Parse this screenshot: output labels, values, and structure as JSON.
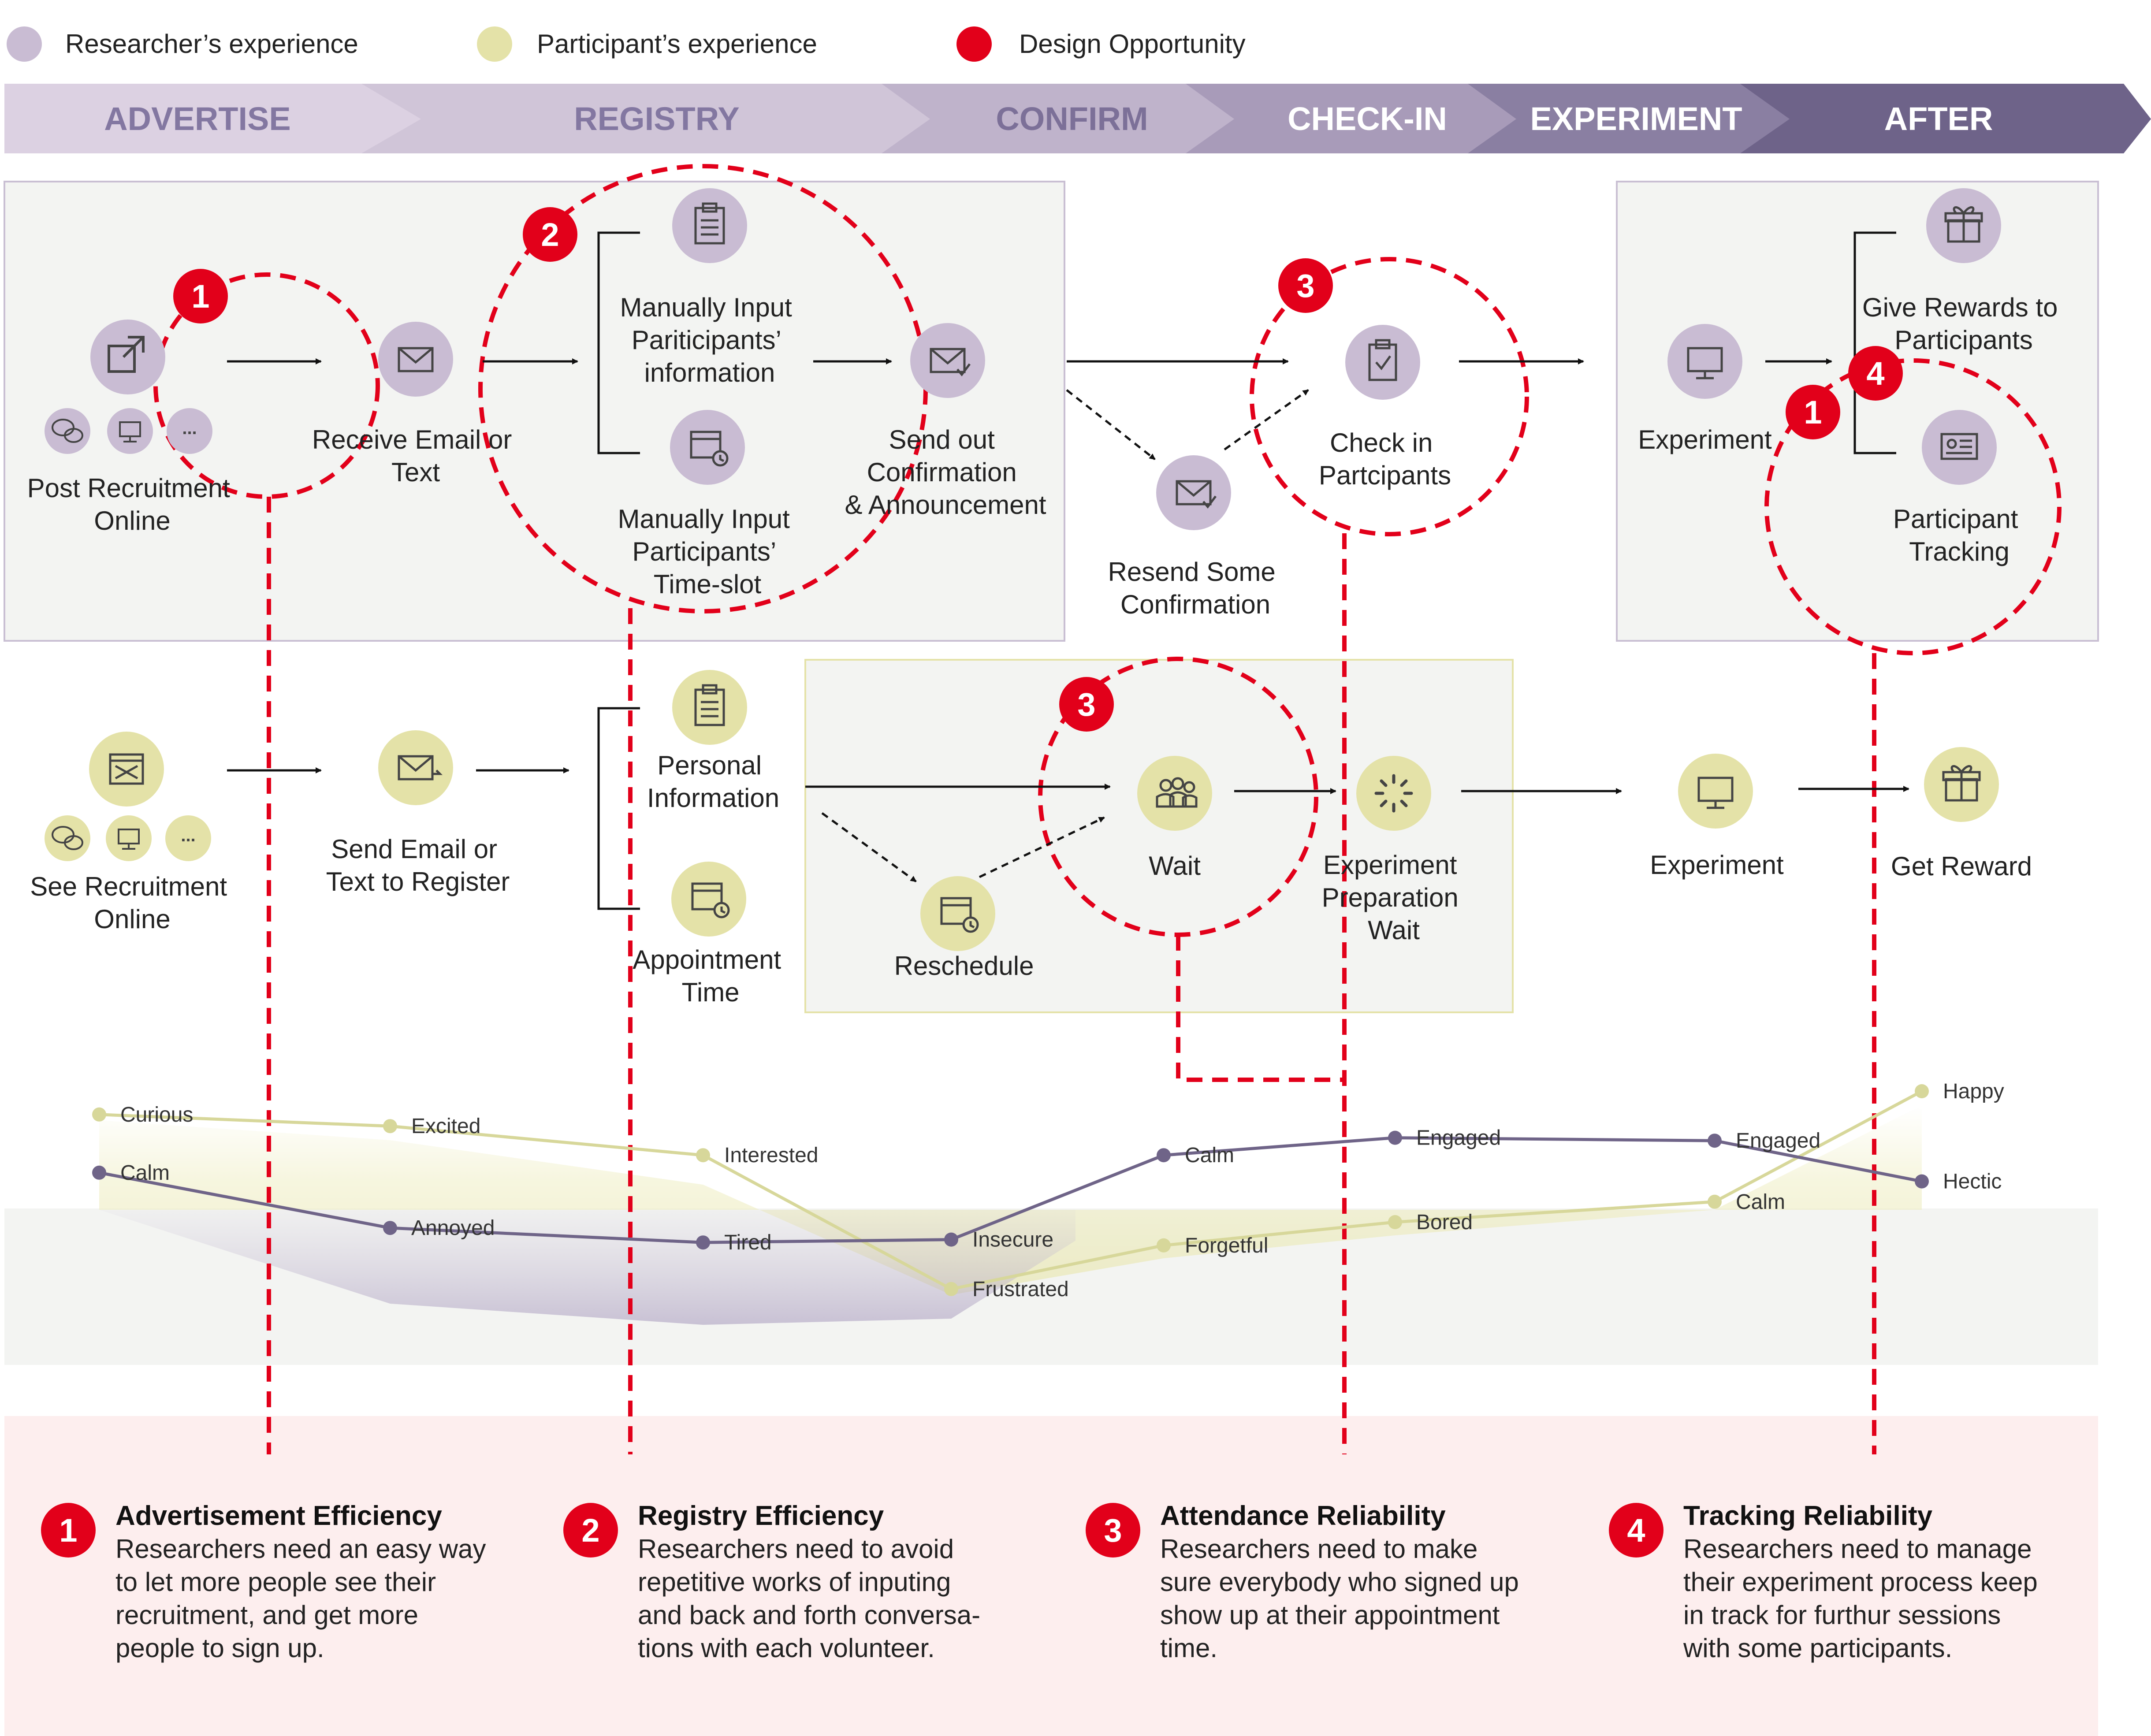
{
  "legend": {
    "researcher": "Researcher’s experience",
    "participant": "Participant’s experience",
    "opportunity": "Design Opportunity"
  },
  "colors": {
    "researcher": "#c9bcd3",
    "participant": "#e4e2a8",
    "opportunity": "#e2001a",
    "stage_light": "#dcd1e2",
    "stage_dark": "#6e6389",
    "line_researcher": "#6f6488",
    "line_participant": "#d7d79a"
  },
  "stages": [
    "ADVERTISE",
    "REGISTRY",
    "CONFIRM",
    "CHECK-IN",
    "EXPERIMENT",
    "AFTER"
  ],
  "researcher": {
    "post": [
      "Post Recruitment",
      "Online"
    ],
    "receive": [
      "Receive Email or",
      "Text"
    ],
    "input_info": [
      "Manually Input",
      "Pariticipants’",
      "information"
    ],
    "input_slot": [
      "Manually Input",
      "Participants’",
      "Time-slot"
    ],
    "send_confirm": [
      "Send out",
      "Confirmation",
      "& Announcement"
    ],
    "resend": [
      "Resend Some",
      "Confirmation"
    ],
    "checkin": [
      "Check in",
      "Partcipants"
    ],
    "experiment": [
      "Experiment"
    ],
    "rewards": [
      "Give Rewards to",
      "Participants"
    ],
    "tracking": [
      "Participant",
      "Tracking"
    ]
  },
  "participant": {
    "see": [
      "See Recruitment",
      "Online"
    ],
    "send": [
      "Send Email or",
      "Text to Register"
    ],
    "personal": [
      "Personal",
      "Information"
    ],
    "appointment": [
      "Appointment",
      "Time"
    ],
    "reschedule": [
      "Reschedule"
    ],
    "wait": [
      "Wait"
    ],
    "prep_wait": [
      "Experiment",
      "Preparation",
      "Wait"
    ],
    "experiment": [
      "Experiment"
    ],
    "reward": [
      "Get Reward"
    ]
  },
  "icons": {
    "more": "..."
  },
  "badges": [
    "1",
    "2",
    "3",
    "3",
    "4",
    "1"
  ],
  "emotion_labels": {
    "participant": [
      "Curious",
      "Excited",
      "Interested",
      "Frustrated",
      "Forgetful",
      "Bored",
      "Calm",
      "Happy"
    ],
    "researcher": [
      "Calm",
      "Annoyed",
      "Tired",
      "Insecure",
      "Calm",
      "Engaged",
      "Engaged",
      "Hectic"
    ]
  },
  "chart_data": {
    "type": "line",
    "x": [
      "Advertise",
      "Receive",
      "Registry",
      "Confirm",
      "Check-in",
      "Experiment prep",
      "Experiment",
      "After"
    ],
    "series": [
      {
        "values": [
          0.82,
          0.78,
          0.68,
          0.22,
          0.37,
          0.45,
          0.52,
          0.9
        ]
      },
      {
        "values": [
          0.62,
          0.43,
          0.38,
          0.39,
          0.68,
          0.74,
          0.73,
          0.59
        ]
      }
    ],
    "ylim": [
      0,
      1
    ]
  },
  "opportunities": [
    {
      "num": "1",
      "title": "Advertisement Efficiency",
      "body": [
        "Researchers need an easy way",
        "to let more people see their",
        "recruitment, and get more",
        "people to sign up."
      ]
    },
    {
      "num": "2",
      "title": "Registry Efficiency",
      "body": [
        "Researchers need to avoid",
        "repetitive works of inputing",
        "and back and forth conversa-",
        "tions with each volunteer."
      ]
    },
    {
      "num": "3",
      "title": "Attendance Reliability",
      "body": [
        "Researchers need to make",
        "sure everybody who signed up",
        "show up at their appointment",
        "time."
      ]
    },
    {
      "num": "4",
      "title": "Tracking Reliability",
      "body": [
        "Researchers need to manage",
        "their experiment process keep",
        "in track for furthur sessions",
        "with some participants."
      ]
    }
  ]
}
